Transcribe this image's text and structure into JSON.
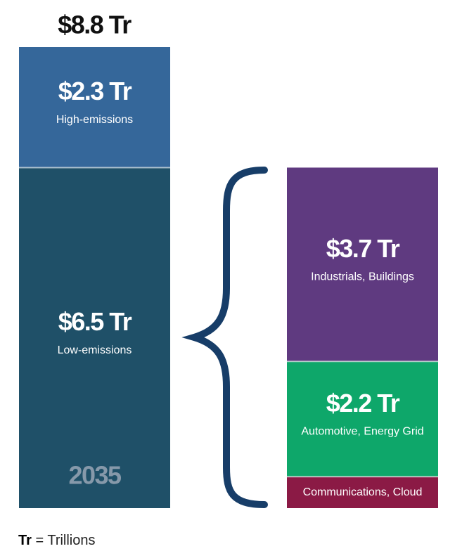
{
  "chart_data": {
    "type": "stacked-bar",
    "total": 8.8,
    "total_label": "$8.8 Tr",
    "bars": [
      {
        "category": "2035",
        "segments": [
          {
            "name": "Low-emissions",
            "value": 6.5,
            "value_label": "$6.5 Tr",
            "color": "#1f5068"
          },
          {
            "name": "High-emissions",
            "value": 2.3,
            "value_label": "$2.3 Tr",
            "color": "#35679a"
          }
        ]
      },
      {
        "segments": [
          {
            "name": "Communications, Cloud",
            "value": 0.6,
            "color": "#8b1a45"
          },
          {
            "name": "Automotive, Energy Grid",
            "value": 2.2,
            "value_label": "$2.2 Tr",
            "color": "#0ea76a"
          },
          {
            "name": "Industrials, Buildings",
            "value": 3.7,
            "value_label": "$3.7 Tr",
            "color": "#5f3a80"
          }
        ]
      }
    ],
    "note": {
      "term": "Tr",
      "definition": "= Trillions"
    }
  }
}
